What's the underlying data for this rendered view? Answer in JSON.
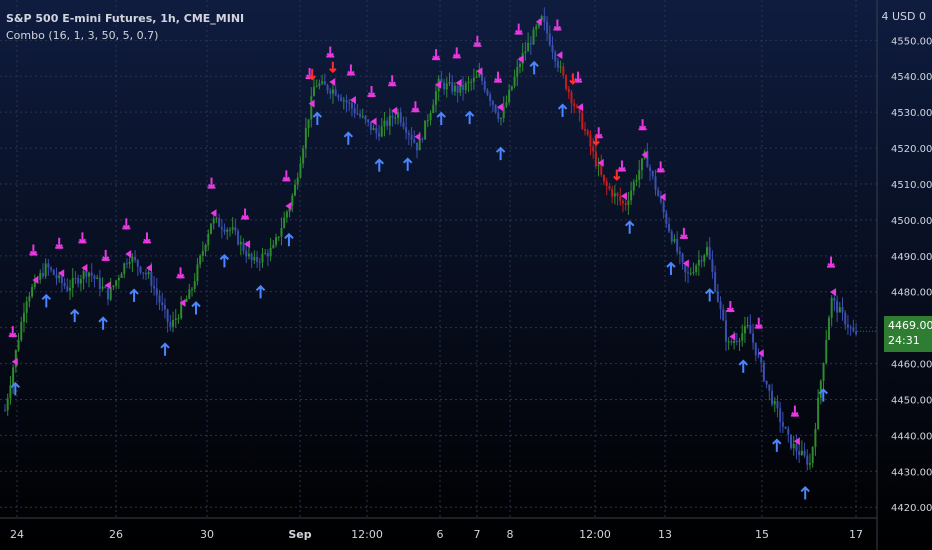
{
  "header": {
    "symbol_title": "S&P 500 E-mini Futures, 1h, CME_MINI",
    "indicator_title": "Combo (16, 1, 3, 50, 5, 0.7)",
    "currency_label": "4 USD 0"
  },
  "last_price": {
    "value": "4469.00",
    "countdown": "24:31"
  },
  "colors": {
    "background_top": "#0f1c3f",
    "background_bottom": "#000000",
    "grid": "#2a3350",
    "axis_text": "#d1d4dc",
    "bull": "#2e8b2e",
    "bear": "#3a4fb0",
    "sell_signal": "#e838e0",
    "sell_strong": "#ff2e2e",
    "buy_signal": "#4a86ff",
    "last_price_bg": "#2e7d32"
  },
  "chart_data": {
    "type": "candlestick",
    "title": "S&P 500 E-mini Futures, 1h, CME_MINI",
    "y_axis": {
      "ticks": [
        4420,
        4430,
        4440,
        4450,
        4460,
        4470,
        4480,
        4490,
        4500,
        4510,
        4520,
        4530,
        4540,
        4550
      ],
      "ylim": [
        4417,
        4559
      ],
      "position": "right"
    },
    "x_axis": {
      "tick_labels": [
        "24",
        "26",
        "30",
        "Sep",
        "12:00",
        "6",
        "7",
        "8",
        "12:00",
        "13",
        "15",
        "17"
      ],
      "xlim": [
        0,
        32
      ]
    },
    "grid": true,
    "price_path": [
      [
        0,
        4447
      ],
      [
        0.8,
        4478
      ],
      [
        1.6,
        4487
      ],
      [
        2.4,
        4481
      ],
      [
        3.2,
        4486
      ],
      [
        4.0,
        4479
      ],
      [
        4.8,
        4490
      ],
      [
        5.6,
        4484
      ],
      [
        6.4,
        4470
      ],
      [
        7.2,
        4480
      ],
      [
        8.0,
        4500
      ],
      [
        8.8,
        4497
      ],
      [
        9.6,
        4488
      ],
      [
        10.4,
        4492
      ],
      [
        11.2,
        4508
      ],
      [
        12.0,
        4538
      ],
      [
        12.8,
        4536
      ],
      [
        13.6,
        4530
      ],
      [
        14.4,
        4524
      ],
      [
        15.2,
        4530
      ],
      [
        16.0,
        4520
      ],
      [
        16.8,
        4538
      ],
      [
        17.6,
        4536
      ],
      [
        18.4,
        4540
      ],
      [
        19.2,
        4528
      ],
      [
        20.0,
        4545
      ],
      [
        20.8,
        4556
      ],
      [
        21.6,
        4540
      ],
      [
        22.4,
        4526
      ],
      [
        23.2,
        4510
      ],
      [
        24.0,
        4504
      ],
      [
        24.8,
        4518
      ],
      [
        25.6,
        4500
      ],
      [
        26.4,
        4484
      ],
      [
        27.2,
        4492
      ],
      [
        28.0,
        4465
      ],
      [
        28.8,
        4470
      ],
      [
        29.6,
        4452
      ],
      [
        30.4,
        4438
      ],
      [
        31.2,
        4432
      ],
      [
        32.0,
        4478
      ],
      [
        33.0,
        4467
      ]
    ],
    "sell_signals_x": [
      0.3,
      1.1,
      2.1,
      3.0,
      3.9,
      4.7,
      5.5,
      6.8,
      8.0,
      9.3,
      10.9,
      11.8,
      12.6,
      13.4,
      14.2,
      15.0,
      15.9,
      16.7,
      17.5,
      18.3,
      19.1,
      19.9,
      20.6,
      21.4,
      22.2,
      23.0,
      23.9,
      24.7,
      25.4,
      26.3,
      28.1,
      29.2,
      30.6,
      32.0
    ],
    "strong_sell_signals_x": [
      11.9,
      12.7,
      22.0,
      22.9,
      23.7
    ],
    "buy_signals_x": [
      0.4,
      1.6,
      2.7,
      3.8,
      5.0,
      6.2,
      7.4,
      8.5,
      9.9,
      11.0,
      12.1,
      13.3,
      14.5,
      15.6,
      16.9,
      18.0,
      19.2,
      20.5,
      21.6,
      24.2,
      25.8,
      27.3,
      28.6,
      29.9,
      31.0,
      31.7
    ]
  }
}
